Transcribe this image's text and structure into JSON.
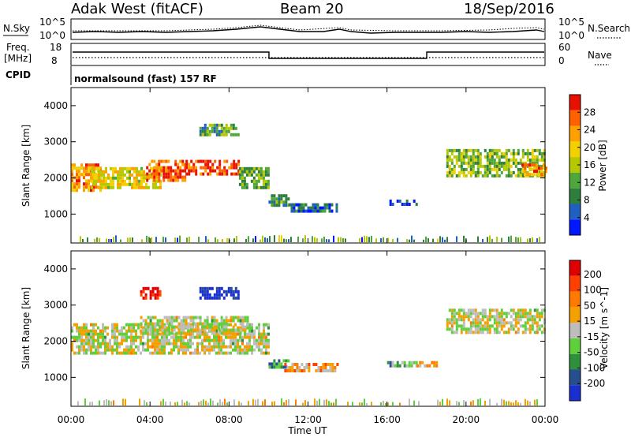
{
  "header": {
    "radar": "Adak West (fitACF)",
    "beam": "Beam 20",
    "date": "18/Sep/2016"
  },
  "strips": {
    "nsky_label": "N.Sky",
    "nsky_ticks": [
      "10^5",
      "10^0"
    ],
    "nsearch_label": "N.Search",
    "nsearch_ticks": [
      "10^5",
      "10^0"
    ],
    "freq_label": "Freq.",
    "freq_unit": "[MHz]",
    "freq_ticks": [
      "18",
      "8"
    ],
    "nave_label": "Nave",
    "nave_ticks": [
      "60",
      "0"
    ],
    "cpid_label": "CPID",
    "cpid_text": "normalsound (fast) 157 RF"
  },
  "chart_data": [
    {
      "type": "heatmap",
      "name": "power",
      "ylabel": "Slant Range [km]",
      "ylim": [
        200,
        4500
      ],
      "yticks": [
        "4000",
        "3000",
        "2000",
        "1000"
      ],
      "xlim": [
        0,
        24
      ],
      "xlabel": "Time UT",
      "xticks": [
        "00:00",
        "04:00",
        "08:00",
        "12:00",
        "16:00",
        "20:00",
        "00:00"
      ],
      "colorbar": {
        "label": "Power [dB]",
        "ticks": [
          "28",
          "24",
          "20",
          "16",
          "12",
          "8",
          "4"
        ],
        "colors": [
          "#0018ff",
          "#2060c0",
          "#2f7f3c",
          "#4fa63a",
          "#b6c800",
          "#f3d000",
          "#ffa000",
          "#ff6000",
          "#e81000"
        ]
      },
      "regions": [
        {
          "t0": 0.0,
          "t1": 1.5,
          "r0": 1700,
          "r1": 2400,
          "level": 0.75
        },
        {
          "t0": 1.0,
          "t1": 4.5,
          "r0": 1750,
          "r1": 2300,
          "level": 0.6
        },
        {
          "t0": 3.8,
          "t1": 5.8,
          "r0": 1900,
          "r1": 2500,
          "level": 0.85
        },
        {
          "t0": 5.8,
          "t1": 8.5,
          "r0": 2100,
          "r1": 2500,
          "level": 0.9
        },
        {
          "t0": 6.5,
          "t1": 8.5,
          "r0": 3200,
          "r1": 3500,
          "level": 0.35
        },
        {
          "t0": 8.5,
          "t1": 10.0,
          "r0": 1700,
          "r1": 2300,
          "level": 0.4
        },
        {
          "t0": 10.0,
          "t1": 11.0,
          "r0": 1250,
          "r1": 1550,
          "level": 0.3
        },
        {
          "t0": 11.0,
          "t1": 13.5,
          "r0": 1100,
          "r1": 1300,
          "level": 0.2
        },
        {
          "t0": 16.0,
          "t1": 17.5,
          "r0": 1300,
          "r1": 1400,
          "level": 0.15
        },
        {
          "t0": 19.0,
          "t1": 24.0,
          "r0": 2050,
          "r1": 2800,
          "level": 0.45
        },
        {
          "t0": 22.8,
          "t1": 24.0,
          "r0": 2100,
          "r1": 2400,
          "level": 0.75
        }
      ]
    },
    {
      "type": "heatmap",
      "name": "velocity",
      "ylabel": "Slant Range [km]",
      "ylim": [
        200,
        4500
      ],
      "yticks": [
        "4000",
        "3000",
        "2000",
        "1000"
      ],
      "xlim": [
        0,
        24
      ],
      "xlabel": "Time UT",
      "xticks": [
        "00:00",
        "04:00",
        "08:00",
        "12:00",
        "16:00",
        "20:00",
        "00:00"
      ],
      "colorbar": {
        "label": "Velocity [m s^-1]",
        "ticks": [
          "200",
          "100",
          "50",
          "15",
          "-15",
          "-50",
          "-100",
          "-200"
        ],
        "colors": [
          "#1a2fd0",
          "#274f8f",
          "#2f8f3c",
          "#5fcf3c",
          "#bdbdbd",
          "#f3a000",
          "#ff7a00",
          "#ff4000",
          "#e00000"
        ]
      },
      "regions": [
        {
          "t0": 0.0,
          "t1": 10.0,
          "r0": 1700,
          "r1": 2500,
          "level": 0.5
        },
        {
          "t0": 3.5,
          "t1": 9.0,
          "r0": 2200,
          "r1": 2700,
          "level": 0.5
        },
        {
          "t0": 3.5,
          "t1": 4.5,
          "r0": 3200,
          "r1": 3500,
          "level": 0.95
        },
        {
          "t0": 6.5,
          "t1": 8.5,
          "r0": 3200,
          "r1": 3500,
          "level": 0.05
        },
        {
          "t0": 10.0,
          "t1": 11.0,
          "r0": 1300,
          "r1": 1500,
          "level": 0.3
        },
        {
          "t0": 10.8,
          "t1": 13.5,
          "r0": 1150,
          "r1": 1400,
          "level": 0.65
        },
        {
          "t0": 16.0,
          "t1": 17.5,
          "r0": 1300,
          "r1": 1450,
          "level": 0.35
        },
        {
          "t0": 17.5,
          "t1": 18.5,
          "r0": 1300,
          "r1": 1450,
          "level": 0.62
        },
        {
          "t0": 19.0,
          "t1": 24.0,
          "r0": 2250,
          "r1": 2900,
          "level": 0.5
        }
      ]
    }
  ]
}
